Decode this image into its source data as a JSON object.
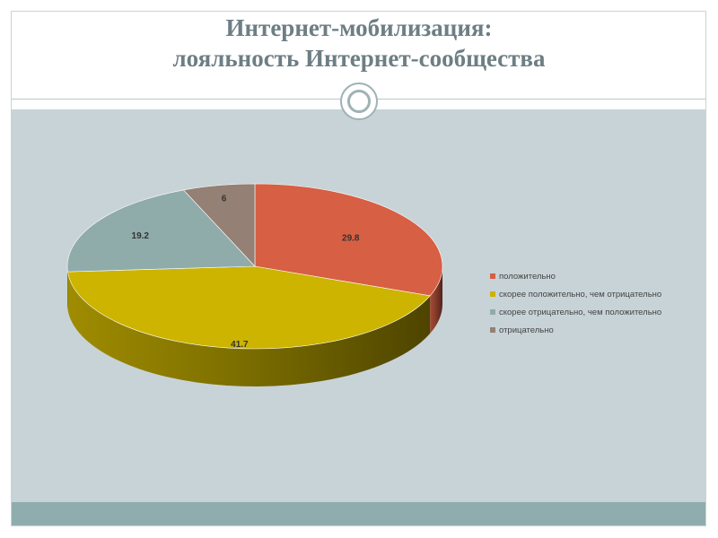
{
  "slide": {
    "title_line1": "Интернет-мобилизация:",
    "title_line2": "лояльность Интернет-сообщества"
  },
  "colors": {
    "positive": "#d65f44",
    "rather_positive": "#ccb400",
    "rather_negative": "#8facaa",
    "negative": "#958075"
  },
  "chart_data": {
    "type": "pie",
    "title": "",
    "style": "3d",
    "legend_position": "right",
    "series": [
      {
        "values": [
          29.8,
          41.7,
          19.2,
          6
        ]
      }
    ],
    "categories": [
      "положительно",
      "скорее положительно, чем отрицательно",
      "скорее отрицательно, чем положительно",
      "отрицательно"
    ],
    "value_labels": [
      "29.8",
      "41.7",
      "19.2",
      "6"
    ]
  }
}
